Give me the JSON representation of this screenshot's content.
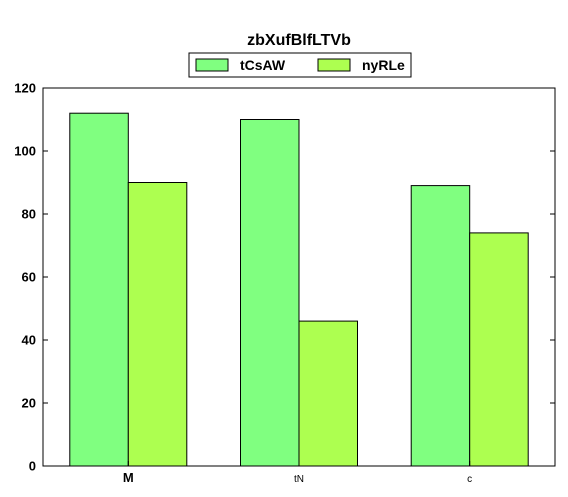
{
  "chart_data": {
    "type": "bar",
    "title": "zbXufBlfLTVb",
    "xlabel": "",
    "ylabel": "",
    "categories": [
      "M",
      "tN",
      "c"
    ],
    "series": [
      {
        "name": "tCsAW",
        "values": [
          112,
          110,
          89
        ],
        "color": "#80ff80"
      },
      {
        "name": "nyRLe",
        "values": [
          90,
          46,
          74
        ],
        "color": "#adff50"
      }
    ],
    "ylim": [
      0,
      120
    ],
    "yticks": [
      "0",
      "20",
      "40",
      "60",
      "80",
      "100",
      "120"
    ],
    "grid": false,
    "legend_position": "top-center"
  }
}
